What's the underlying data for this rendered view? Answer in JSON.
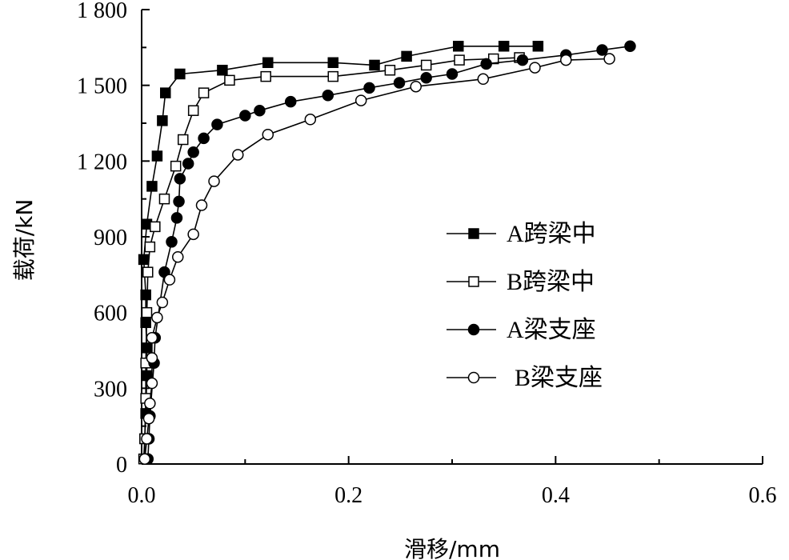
{
  "chart_data": {
    "type": "line",
    "title": "",
    "xlabel": "滑移/mm",
    "ylabel": "载荷/kN",
    "xlim": [
      0.0,
      0.6
    ],
    "ylim": [
      0,
      1800
    ],
    "xticks": [
      0.0,
      0.2,
      0.4,
      0.6
    ],
    "xtick_labels": [
      "0.0",
      "0.2",
      "0.4",
      "0.6"
    ],
    "yticks": [
      0,
      300,
      600,
      900,
      1200,
      1500,
      1800
    ],
    "ytick_labels": [
      "0",
      "300",
      "600",
      "900",
      "1 200",
      "1 500",
      "1 800"
    ],
    "legend_position": "center-right",
    "grid": false,
    "series": [
      {
        "name": "A跨梁中",
        "marker": "filled-square",
        "points": [
          [
            0.003,
            20
          ],
          [
            0.003,
            100
          ],
          [
            0.004,
            200
          ],
          [
            0.005,
            350
          ],
          [
            0.005,
            460
          ],
          [
            0.004,
            560
          ],
          [
            0.004,
            670
          ],
          [
            0.002,
            810
          ],
          [
            0.005,
            950
          ],
          [
            0.01,
            1100
          ],
          [
            0.015,
            1220
          ],
          [
            0.02,
            1360
          ],
          [
            0.023,
            1470
          ],
          [
            0.037,
            1545
          ],
          [
            0.078,
            1560
          ],
          [
            0.122,
            1590
          ],
          [
            0.185,
            1590
          ],
          [
            0.225,
            1580
          ],
          [
            0.256,
            1615
          ],
          [
            0.306,
            1655
          ],
          [
            0.35,
            1655
          ],
          [
            0.383,
            1655
          ]
        ]
      },
      {
        "name": "B跨梁中",
        "marker": "open-square",
        "points": [
          [
            0.002,
            20
          ],
          [
            0.003,
            100
          ],
          [
            0.004,
            260
          ],
          [
            0.004,
            400
          ],
          [
            0.005,
            600
          ],
          [
            0.006,
            760
          ],
          [
            0.008,
            860
          ],
          [
            0.013,
            940
          ],
          [
            0.022,
            1050
          ],
          [
            0.033,
            1180
          ],
          [
            0.04,
            1285
          ],
          [
            0.05,
            1400
          ],
          [
            0.06,
            1470
          ],
          [
            0.085,
            1520
          ],
          [
            0.12,
            1535
          ],
          [
            0.185,
            1535
          ],
          [
            0.24,
            1560
          ],
          [
            0.275,
            1580
          ],
          [
            0.307,
            1600
          ],
          [
            0.34,
            1605
          ],
          [
            0.365,
            1610
          ]
        ]
      },
      {
        "name": "A梁支座",
        "marker": "filled-circle",
        "points": [
          [
            0.006,
            20
          ],
          [
            0.007,
            100
          ],
          [
            0.008,
            190
          ],
          [
            0.012,
            400
          ],
          [
            0.013,
            500
          ],
          [
            0.022,
            760
          ],
          [
            0.029,
            880
          ],
          [
            0.034,
            975
          ],
          [
            0.036,
            1040
          ],
          [
            0.037,
            1130
          ],
          [
            0.045,
            1190
          ],
          [
            0.05,
            1235
          ],
          [
            0.06,
            1290
          ],
          [
            0.073,
            1345
          ],
          [
            0.1,
            1380
          ],
          [
            0.114,
            1400
          ],
          [
            0.144,
            1435
          ],
          [
            0.18,
            1460
          ],
          [
            0.22,
            1490
          ],
          [
            0.249,
            1510
          ],
          [
            0.275,
            1530
          ],
          [
            0.3,
            1545
          ],
          [
            0.333,
            1585
          ],
          [
            0.368,
            1600
          ],
          [
            0.41,
            1620
          ],
          [
            0.445,
            1640
          ],
          [
            0.472,
            1655
          ]
        ]
      },
      {
        "name": "B梁支座",
        "marker": "open-circle",
        "points": [
          [
            0.003,
            20
          ],
          [
            0.005,
            100
          ],
          [
            0.007,
            180
          ],
          [
            0.008,
            240
          ],
          [
            0.01,
            320
          ],
          [
            0.01,
            420
          ],
          [
            0.01,
            500
          ],
          [
            0.015,
            580
          ],
          [
            0.02,
            640
          ],
          [
            0.027,
            730
          ],
          [
            0.035,
            820
          ],
          [
            0.05,
            910
          ],
          [
            0.058,
            1025
          ],
          [
            0.07,
            1120
          ],
          [
            0.093,
            1225
          ],
          [
            0.122,
            1305
          ],
          [
            0.163,
            1365
          ],
          [
            0.212,
            1440
          ],
          [
            0.265,
            1495
          ],
          [
            0.33,
            1525
          ],
          [
            0.38,
            1570
          ],
          [
            0.41,
            1600
          ],
          [
            0.452,
            1605
          ]
        ]
      }
    ]
  }
}
